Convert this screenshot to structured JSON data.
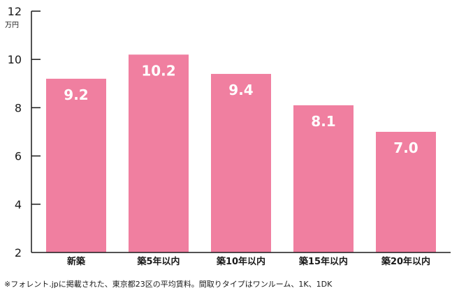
{
  "chart_data": {
    "type": "bar",
    "categories": [
      "新築",
      "築5年以内",
      "築10年以内",
      "築15年以内",
      "築20年以内"
    ],
    "values": [
      9.2,
      10.2,
      9.4,
      8.1,
      7.0
    ],
    "value_labels": [
      "9.2",
      "10.2",
      "9.4",
      "8.1",
      "7.0"
    ],
    "ylim": [
      2,
      12
    ],
    "yticks": [
      2,
      4,
      6,
      8,
      10,
      12
    ],
    "ylabel": "万円",
    "bar_color": "#f07fa0",
    "axis_color": "#1a1a1a",
    "grid": false
  },
  "footnote": "※フォレント.jpに掲載された、東京都23区の平均賃料。間取りタイプはワンルーム、1K、1DK"
}
